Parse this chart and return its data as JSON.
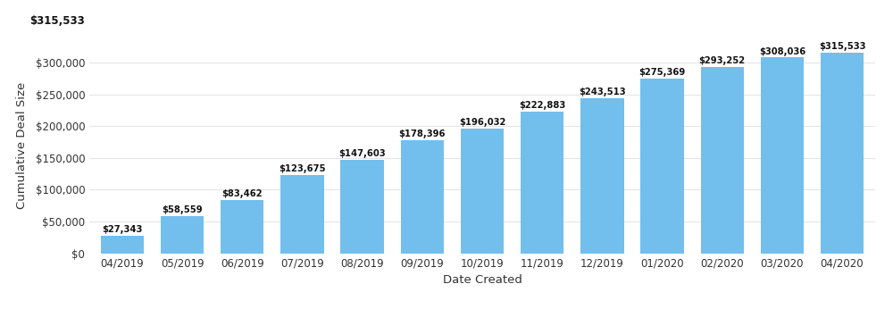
{
  "categories": [
    "04/2019",
    "05/2019",
    "06/2019",
    "07/2019",
    "08/2019",
    "09/2019",
    "10/2019",
    "11/2019",
    "12/2019",
    "01/2020",
    "02/2020",
    "03/2020",
    "04/2020"
  ],
  "values": [
    27343,
    58559,
    83462,
    123675,
    147603,
    178396,
    196032,
    222883,
    243513,
    275369,
    293252,
    308036,
    315533
  ],
  "labels": [
    "$27,343",
    "$58,559",
    "$83,462",
    "$123,675",
    "$147,603",
    "$178,396",
    "$196,032",
    "$222,883",
    "$243,513",
    "$275,369",
    "$293,252",
    "$308,036",
    "$315,533"
  ],
  "bar_color": "#72BFED",
  "background_color": "#ffffff",
  "grid_color": "#e5e5e5",
  "xlabel": "Date Created",
  "ylabel": "Cumulative Deal Size",
  "ylim": [
    0,
    340000
  ],
  "yticks": [
    0,
    50000,
    100000,
    150000,
    200000,
    250000,
    300000
  ],
  "ytick_labels": [
    "$0",
    "$50,000",
    "$100,000",
    "$150,000",
    "$200,000",
    "$250,000",
    "$300,000"
  ],
  "top_annotation": "$315,533",
  "bar_width": 0.72,
  "label_fontsize": 7.2,
  "axis_label_fontsize": 9.5,
  "tick_fontsize": 8.5
}
